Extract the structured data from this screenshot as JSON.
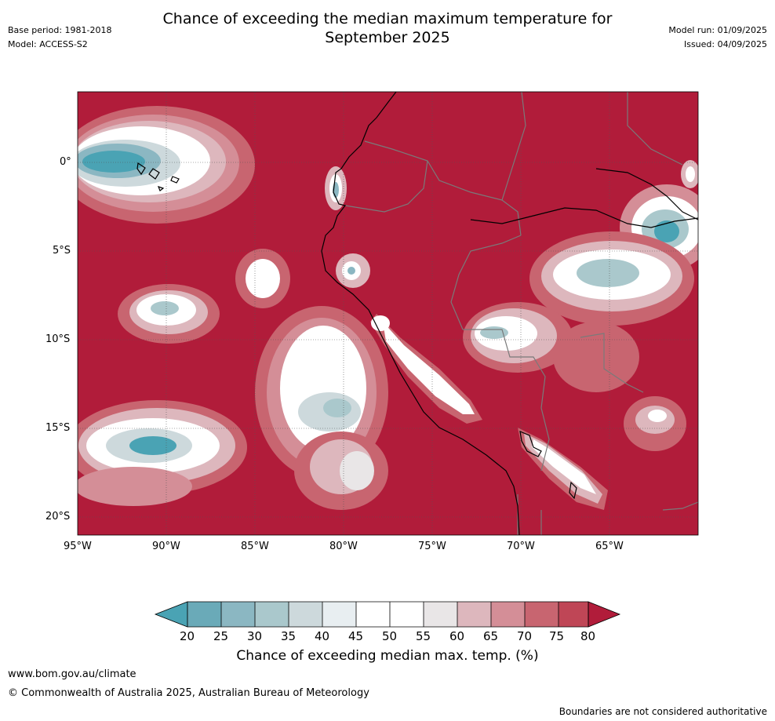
{
  "header": {
    "title_line1": "Chance of exceeding the median maximum temperature for",
    "title_line2": "September 2025",
    "base_period": "Base period: 1981-2018",
    "model": "Model: ACCESS-S2",
    "model_run": "Model run: 01/09/2025",
    "issued": "Issued: 04/09/2025"
  },
  "map": {
    "lat_ticks": [
      "0°",
      "5°S",
      "10°S",
      "15°S",
      "20°S"
    ],
    "lon_ticks": [
      "95°W",
      "90°W",
      "85°W",
      "80°W",
      "75°W",
      "70°W",
      "65°W"
    ],
    "grid": true,
    "region": "Western South America and eastern Pacific"
  },
  "colorbar": {
    "ticks": [
      "20",
      "25",
      "30",
      "35",
      "40",
      "45",
      "50",
      "55",
      "60",
      "65",
      "70",
      "75",
      "80"
    ],
    "colors": [
      "#4aa3b4",
      "#6aaab8",
      "#8bb7c2",
      "#aac8cc",
      "#cdd9dc",
      "#e8eef1",
      "#ffffff",
      "#ffffff",
      "#e9e6e7",
      "#ddb7bd",
      "#d48e97",
      "#c86570",
      "#bf4656",
      "#b11c3a"
    ],
    "label": "Chance of exceeding median max. temp. (%)"
  },
  "footer": {
    "url": "www.bom.gov.au/climate",
    "copyright": "© Commonwealth of Australia 2025, Australian Bureau of Meteorology",
    "disclaimer": "Boundaries are not considered authoritative"
  }
}
